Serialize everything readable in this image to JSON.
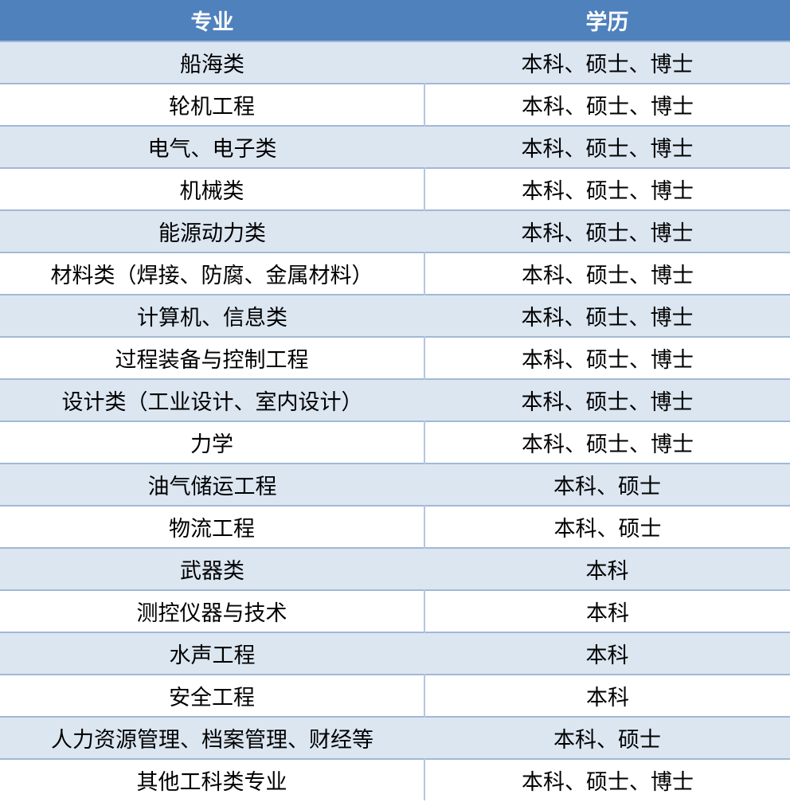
{
  "table": {
    "title": "majors-and-degrees-table",
    "columns": {
      "major_label": "专业",
      "degree_label": "学历"
    },
    "style": {
      "header_bg": "#4F81BD",
      "header_text": "#FFFFFF",
      "band_row_bg": "#DCE6F1",
      "white_row_bg": "#FFFFFF",
      "border_color": "#A2B8D6",
      "divider_color": "#B4C6E0",
      "body_text": "#000000"
    },
    "rows": [
      {
        "major": "船海类",
        "degrees": "本科、硕士、博士"
      },
      {
        "major": "轮机工程",
        "degrees": "本科、硕士、博士"
      },
      {
        "major": "电气、电子类",
        "degrees": "本科、硕士、博士"
      },
      {
        "major": "机械类",
        "degrees": "本科、硕士、博士"
      },
      {
        "major": "能源动力类",
        "degrees": "本科、硕士、博士"
      },
      {
        "major": "材料类（焊接、防腐、金属材料）",
        "degrees": "本科、硕士、博士"
      },
      {
        "major": "计算机、信息类",
        "degrees": "本科、硕士、博士"
      },
      {
        "major": "过程装备与控制工程",
        "degrees": "本科、硕士、博士"
      },
      {
        "major": "设计类（工业设计、室内设计）",
        "degrees": "本科、硕士、博士"
      },
      {
        "major": "力学",
        "degrees": "本科、硕士、博士"
      },
      {
        "major": "油气储运工程",
        "degrees": "本科、硕士"
      },
      {
        "major": "物流工程",
        "degrees": "本科、硕士"
      },
      {
        "major": "武器类",
        "degrees": "本科"
      },
      {
        "major": "测控仪器与技术",
        "degrees": "本科"
      },
      {
        "major": "水声工程",
        "degrees": "本科"
      },
      {
        "major": "安全工程",
        "degrees": "本科"
      },
      {
        "major": "人力资源管理、档案管理、财经等",
        "degrees": "本科、硕士"
      },
      {
        "major": "其他工科类专业",
        "degrees": "本科、硕士、博士"
      }
    ]
  }
}
